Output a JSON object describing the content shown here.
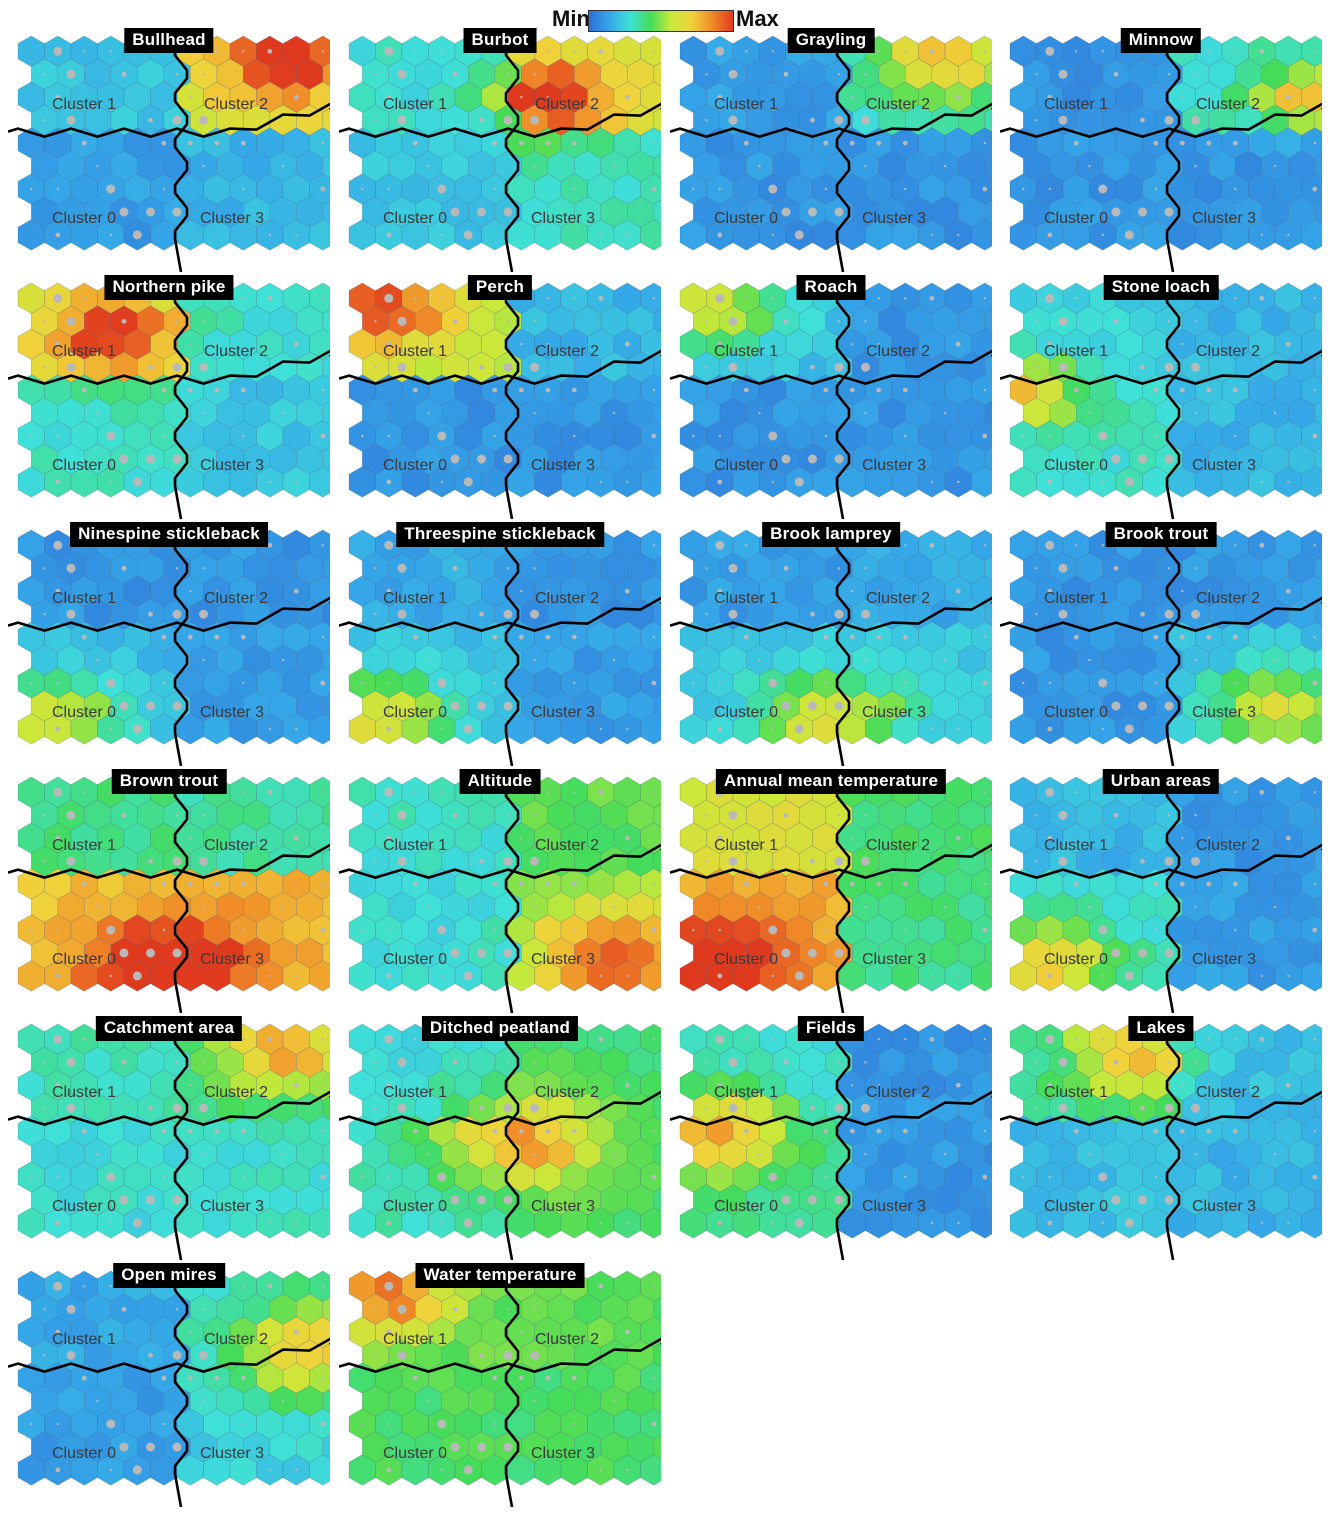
{
  "legend": {
    "min_label": "Min",
    "max_label": "Max",
    "colors": [
      "#2f6fd8",
      "#35a7e8",
      "#3fe0d8",
      "#45dc5a",
      "#c8e83a",
      "#f0d23a",
      "#f08a28",
      "#e03a1e"
    ]
  },
  "cluster_labels": {
    "c0": "Cluster 0",
    "c1": "Cluster 1",
    "c2": "Cluster 2",
    "c3": "Cluster 3"
  },
  "chart_data": {
    "type": "heatmap",
    "description_grid": "self-organizing map component planes, 9 rows x 12 hexagon columns, 4 clusters",
    "scale": "min-max per variable",
    "panels": [
      {
        "name": "Bullhead",
        "levels": {
          "c0": 0.12,
          "c1": 0.22,
          "c2": 0.62,
          "c3": 0.18
        },
        "hotspot": "top-right"
      },
      {
        "name": "Burbot",
        "levels": {
          "c0": 0.22,
          "c1": 0.28,
          "c2": 0.62,
          "c3": 0.32
        },
        "hotspot": "cluster 2 center"
      },
      {
        "name": "Grayling",
        "levels": {
          "c0": 0.1,
          "c1": 0.12,
          "c2": 0.3,
          "c3": 0.1
        },
        "hotspot": "top-right"
      },
      {
        "name": "Minnow",
        "levels": {
          "c0": 0.1,
          "c1": 0.1,
          "c2": 0.3,
          "c3": 0.1
        },
        "hotspot": "right edge"
      },
      {
        "name": "Northern pike",
        "levels": {
          "c0": 0.3,
          "c1": 0.58,
          "c2": 0.28,
          "c3": 0.22
        },
        "hotspot": "cluster 1 center"
      },
      {
        "name": "Perch",
        "levels": {
          "c0": 0.1,
          "c1": 0.55,
          "c2": 0.18,
          "c3": 0.1
        },
        "hotspot": "top-left"
      },
      {
        "name": "Roach",
        "levels": {
          "c0": 0.1,
          "c1": 0.2,
          "c2": 0.1,
          "c3": 0.1
        },
        "hotspot": "top-left"
      },
      {
        "name": "Stone loach",
        "levels": {
          "c0": 0.3,
          "c1": 0.25,
          "c2": 0.18,
          "c3": 0.18
        },
        "hotspot": "left edge"
      },
      {
        "name": "Ninespine stickleback",
        "levels": {
          "c0": 0.18,
          "c1": 0.1,
          "c2": 0.1,
          "c3": 0.12
        },
        "hotspot": "bottom-left"
      },
      {
        "name": "Threespine stickleback",
        "levels": {
          "c0": 0.2,
          "c1": 0.15,
          "c2": 0.1,
          "c3": 0.12
        },
        "hotspot": "bottom-left"
      },
      {
        "name": "Brook lamprey",
        "levels": {
          "c0": 0.22,
          "c1": 0.12,
          "c2": 0.15,
          "c3": 0.22
        },
        "hotspot": "bottom-center"
      },
      {
        "name": "Brook trout",
        "levels": {
          "c0": 0.1,
          "c1": 0.1,
          "c2": 0.1,
          "c3": 0.18
        },
        "hotspot": "bottom-right"
      },
      {
        "name": "Brown trout",
        "levels": {
          "c0": 0.75,
          "c1": 0.38,
          "c2": 0.35,
          "c3": 0.78
        },
        "hotspot": "bottom-center"
      },
      {
        "name": "Altitude",
        "levels": {
          "c0": 0.28,
          "c1": 0.3,
          "c2": 0.45,
          "c3": 0.52
        },
        "hotspot": "bottom-right"
      },
      {
        "name": "Annual mean temperature",
        "levels": {
          "c0": 0.78,
          "c1": 0.62,
          "c2": 0.4,
          "c3": 0.38
        },
        "hotspot": "bottom-left"
      },
      {
        "name": "Urban areas",
        "levels": {
          "c0": 0.28,
          "c1": 0.18,
          "c2": 0.1,
          "c3": 0.12
        },
        "hotspot": "bottom-left"
      },
      {
        "name": "Catchment area",
        "levels": {
          "c0": 0.28,
          "c1": 0.32,
          "c2": 0.38,
          "c3": 0.3
        },
        "hotspot": "top-right"
      },
      {
        "name": "Ditched peatland",
        "levels": {
          "c0": 0.32,
          "c1": 0.28,
          "c2": 0.4,
          "c3": 0.42
        },
        "hotspot": "center"
      },
      {
        "name": "Fields",
        "levels": {
          "c0": 0.35,
          "c1": 0.3,
          "c2": 0.1,
          "c3": 0.1
        },
        "hotspot": "left"
      },
      {
        "name": "Lakes",
        "levels": {
          "c0": 0.2,
          "c1": 0.35,
          "c2": 0.2,
          "c3": 0.18
        },
        "hotspot": "top-center"
      },
      {
        "name": "Open mires",
        "levels": {
          "c0": 0.12,
          "c1": 0.15,
          "c2": 0.28,
          "c3": 0.25
        },
        "hotspot": "right"
      },
      {
        "name": "Water temperature",
        "levels": {
          "c0": 0.42,
          "c1": 0.45,
          "c2": 0.45,
          "c3": 0.42
        },
        "hotspot": "top-left"
      }
    ]
  }
}
